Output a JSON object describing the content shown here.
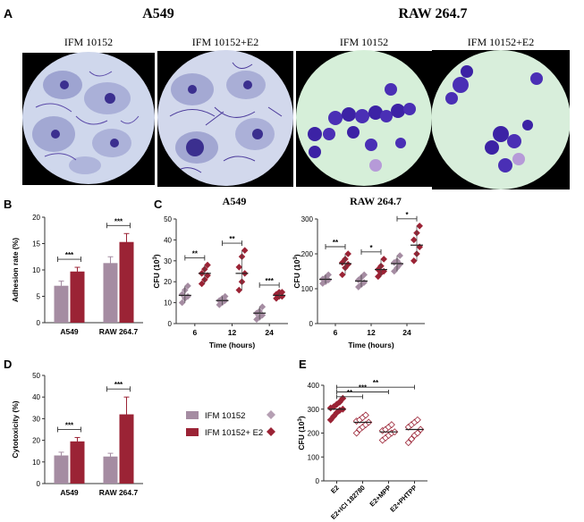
{
  "panel_a": {
    "letter": "A",
    "group_left": "A549",
    "group_right": "RAW 264.7",
    "images": [
      {
        "label": "IFM 10152",
        "kind": "epithelial"
      },
      {
        "label": "IFM 10152+E2",
        "kind": "epithelial"
      },
      {
        "label": "IFM 10152",
        "kind": "macrophage"
      },
      {
        "label": "IFM 10152+E2",
        "kind": "macrophage"
      }
    ]
  },
  "panel_b": {
    "letter": "B"
  },
  "panel_c": {
    "letter": "C",
    "subtitle_left": "A549",
    "subtitle_right": "RAW 264.7"
  },
  "panel_d": {
    "letter": "D"
  },
  "panel_e": {
    "letter": "E"
  },
  "legend": {
    "items": [
      {
        "label": "IFM 10152",
        "color": "#a58ca2"
      },
      {
        "label": "IFM 10152+ E2",
        "color": "#9b2335"
      }
    ]
  },
  "chart_data": [
    {
      "id": "B",
      "type": "bar",
      "ylabel": "Adhesion rate (%)",
      "xlabel": "",
      "ylim": [
        0,
        20
      ],
      "yticks": [
        0,
        5,
        10,
        15,
        20
      ],
      "categories": [
        "A549",
        "RAW 264.7"
      ],
      "series": [
        {
          "name": "IFM 10152",
          "values": [
            7.0,
            11.3
          ],
          "errors": [
            0.9,
            1.2
          ]
        },
        {
          "name": "IFM 10152+E2",
          "values": [
            9.7,
            15.3
          ],
          "errors": [
            0.8,
            1.6
          ]
        }
      ],
      "significance": [
        "***",
        "***"
      ]
    },
    {
      "id": "C1",
      "type": "scatter",
      "title": "A549",
      "ylabel": "CFU (10^3)",
      "xlabel": "Time (hours)",
      "ylim": [
        0,
        50
      ],
      "yticks": [
        0,
        10,
        20,
        30,
        40,
        50
      ],
      "categories": [
        "6",
        "12",
        "24"
      ],
      "series": [
        {
          "name": "IFM 10152",
          "points": [
            [
              10,
              12,
              13,
              14,
              16,
              18
            ],
            [
              9,
              10,
              11,
              11,
              12,
              13
            ],
            [
              2,
              3,
              4,
              5,
              6,
              8
            ]
          ],
          "means": [
            13.5,
            11,
            5
          ]
        },
        {
          "name": "IFM 10152+E2",
          "points": [
            [
              19,
              21,
              23,
              24,
              26,
              28
            ],
            [
              16,
              20,
              24,
              27,
              32,
              35
            ],
            [
              12,
              13,
              13,
              14,
              15,
              15
            ]
          ],
          "means": [
            24,
            24,
            13.5
          ]
        }
      ],
      "significance": [
        "**",
        "**",
        "***"
      ]
    },
    {
      "id": "C2",
      "type": "scatter",
      "title": "RAW 264.7",
      "ylabel": "CFU (10^3)",
      "xlabel": "Time (hours)",
      "ylim": [
        0,
        300
      ],
      "yticks": [
        0,
        100,
        200,
        300
      ],
      "categories": [
        "6",
        "12",
        "24"
      ],
      "series": [
        {
          "name": "IFM 10152",
          "points": [
            [
              115,
              120,
              125,
              128,
              132,
              140
            ],
            [
              105,
              112,
              118,
              125,
              132,
              140
            ],
            [
              150,
              160,
              170,
              175,
              180,
              195
            ]
          ],
          "means": [
            127,
            122,
            172
          ]
        },
        {
          "name": "IFM 10152+E2",
          "points": [
            [
              140,
              160,
              170,
              175,
              185,
              200
            ],
            [
              135,
              145,
              150,
              155,
              165,
              185
            ],
            [
              180,
              200,
              220,
              240,
              260,
              280
            ]
          ],
          "means": [
            172,
            155,
            225
          ]
        }
      ],
      "significance": [
        "**",
        "*",
        "*"
      ]
    },
    {
      "id": "D",
      "type": "bar",
      "ylabel": "Cytotoxicity (%)",
      "xlabel": "",
      "ylim": [
        0,
        50
      ],
      "yticks": [
        0,
        10,
        20,
        30,
        40,
        50
      ],
      "categories": [
        "A549",
        "RAW 264.7"
      ],
      "series": [
        {
          "name": "IFM 10152",
          "values": [
            13.0,
            12.5
          ],
          "errors": [
            1.5,
            1.5
          ]
        },
        {
          "name": "IFM 10152+E2",
          "values": [
            19.5,
            32.0
          ],
          "errors": [
            1.8,
            8.0
          ]
        }
      ],
      "significance": [
        "***",
        "***"
      ]
    },
    {
      "id": "E",
      "type": "scatter",
      "ylabel": "CFU (10^3)",
      "xlabel": "",
      "ylim": [
        0,
        400
      ],
      "yticks": [
        0,
        100,
        200,
        300,
        400
      ],
      "categories": [
        "E2",
        "E2+ICI 182780",
        "E2+MPP",
        "E2+PHTPP"
      ],
      "series": [
        {
          "name": "E2",
          "points": [
            [
              255,
              270,
              285,
              295,
              300,
              305,
              310,
              320,
              330,
              345
            ]
          ],
          "mean": 300
        },
        {
          "name": "E2+ICI 182780",
          "points": [
            [
              200,
              215,
              225,
              235,
              245,
              250,
              255,
              265,
              275
            ]
          ],
          "mean": 245
        },
        {
          "name": "E2+MPP",
          "points": [
            [
              170,
              180,
              190,
              200,
              205,
              210,
              215,
              225,
              235
            ]
          ],
          "mean": 205
        },
        {
          "name": "E2+PHTPP",
          "points": [
            [
              160,
              175,
              190,
              200,
              215,
              225,
              235,
              245,
              255
            ]
          ],
          "mean": 215
        }
      ],
      "comparisons": [
        {
          "from": 0,
          "to": 1,
          "label": "**"
        },
        {
          "from": 0,
          "to": 2,
          "label": "***"
        },
        {
          "from": 0,
          "to": 3,
          "label": "**"
        }
      ]
    }
  ]
}
